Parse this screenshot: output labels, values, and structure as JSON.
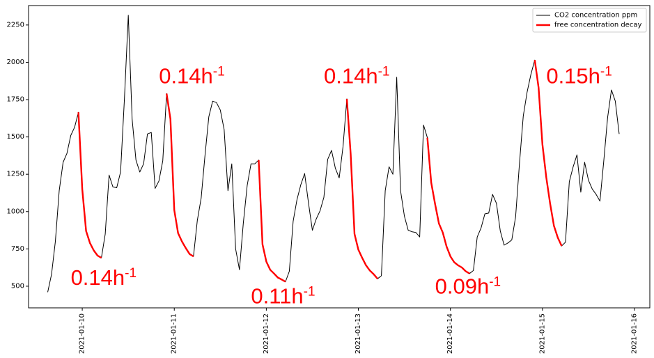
{
  "chart_data": {
    "type": "line",
    "title": "",
    "xlabel": "",
    "ylabel": "",
    "xlim": [
      "2021-01-09 10:00",
      "2021-01-16 04:00"
    ],
    "ylim": [
      355,
      2380
    ],
    "x_ticks": [
      "2021-01-10",
      "2021-01-11",
      "2021-01-12",
      "2021-01-13",
      "2021-01-14",
      "2021-01-15",
      "2021-01-16"
    ],
    "y_ticks": [
      "500",
      "750",
      "1000",
      "1250",
      "1500",
      "1750",
      "2000",
      "2250"
    ],
    "grid": false,
    "legend_position": "top-right",
    "series": [
      {
        "name": "CO2 concentration  ppm",
        "color": "#000000",
        "points": [
          [
            "2021-01-09 15:00",
            460
          ],
          [
            "2021-01-09 16:00",
            580
          ],
          [
            "2021-01-09 17:00",
            800
          ],
          [
            "2021-01-09 18:00",
            1140
          ],
          [
            "2021-01-09 19:00",
            1330
          ],
          [
            "2021-01-09 20:00",
            1390
          ],
          [
            "2021-01-09 21:00",
            1510
          ],
          [
            "2021-01-09 22:00",
            1565
          ],
          [
            "2021-01-09 23:00",
            1665
          ],
          [
            "2021-01-10 00:00",
            1150
          ],
          [
            "2021-01-10 01:00",
            870
          ],
          [
            "2021-01-10 02:00",
            790
          ],
          [
            "2021-01-10 03:00",
            740
          ],
          [
            "2021-01-10 04:00",
            705
          ],
          [
            "2021-01-10 05:00",
            690
          ],
          [
            "2021-01-10 06:00",
            850
          ],
          [
            "2021-01-10 07:00",
            1245
          ],
          [
            "2021-01-10 08:00",
            1165
          ],
          [
            "2021-01-10 09:00",
            1160
          ],
          [
            "2021-01-10 10:00",
            1265
          ],
          [
            "2021-01-10 11:00",
            1760
          ],
          [
            "2021-01-10 12:00",
            2315
          ],
          [
            "2021-01-10 13:00",
            1620
          ],
          [
            "2021-01-10 14:00",
            1345
          ],
          [
            "2021-01-10 15:00",
            1265
          ],
          [
            "2021-01-10 16:00",
            1320
          ],
          [
            "2021-01-10 17:00",
            1520
          ],
          [
            "2021-01-10 18:00",
            1530
          ],
          [
            "2021-01-10 19:00",
            1155
          ],
          [
            "2021-01-10 20:00",
            1205
          ],
          [
            "2021-01-10 21:00",
            1340
          ],
          [
            "2021-01-10 22:00",
            1790
          ],
          [
            "2021-01-10 23:00",
            1620
          ],
          [
            "2021-01-11 00:00",
            1010
          ],
          [
            "2021-01-11 01:00",
            855
          ],
          [
            "2021-01-11 02:00",
            800
          ],
          [
            "2021-01-11 03:00",
            755
          ],
          [
            "2021-01-11 04:00",
            715
          ],
          [
            "2021-01-11 05:00",
            700
          ],
          [
            "2021-01-11 06:00",
            940
          ],
          [
            "2021-01-11 07:00",
            1090
          ],
          [
            "2021-01-11 08:00",
            1375
          ],
          [
            "2021-01-11 09:00",
            1635
          ],
          [
            "2021-01-11 10:00",
            1740
          ],
          [
            "2021-01-11 11:00",
            1730
          ],
          [
            "2021-01-11 12:00",
            1680
          ],
          [
            "2021-01-11 13:00",
            1550
          ],
          [
            "2021-01-11 14:00",
            1140
          ],
          [
            "2021-01-11 15:00",
            1320
          ],
          [
            "2021-01-11 16:00",
            750
          ],
          [
            "2021-01-11 17:00",
            610
          ],
          [
            "2021-01-11 18:00",
            920
          ],
          [
            "2021-01-11 19:00",
            1175
          ],
          [
            "2021-01-11 20:00",
            1320
          ],
          [
            "2021-01-11 21:00",
            1320
          ],
          [
            "2021-01-11 22:00",
            1345
          ],
          [
            "2021-01-11 23:00",
            780
          ],
          [
            "2021-01-12 00:00",
            665
          ],
          [
            "2021-01-12 01:00",
            610
          ],
          [
            "2021-01-12 02:00",
            585
          ],
          [
            "2021-01-12 03:00",
            558
          ],
          [
            "2021-01-12 04:00",
            545
          ],
          [
            "2021-01-12 05:00",
            530
          ],
          [
            "2021-01-12 06:00",
            600
          ],
          [
            "2021-01-12 07:00",
            935
          ],
          [
            "2021-01-12 08:00",
            1080
          ],
          [
            "2021-01-12 09:00",
            1180
          ],
          [
            "2021-01-12 10:00",
            1255
          ],
          [
            "2021-01-12 11:00",
            1055
          ],
          [
            "2021-01-12 12:00",
            875
          ],
          [
            "2021-01-12 13:00",
            950
          ],
          [
            "2021-01-12 14:00",
            1005
          ],
          [
            "2021-01-12 15:00",
            1095
          ],
          [
            "2021-01-12 16:00",
            1350
          ],
          [
            "2021-01-12 17:00",
            1410
          ],
          [
            "2021-01-12 18:00",
            1290
          ],
          [
            "2021-01-12 19:00",
            1225
          ],
          [
            "2021-01-12 20:00",
            1435
          ],
          [
            "2021-01-12 21:00",
            1755
          ],
          [
            "2021-01-12 22:00",
            1385
          ],
          [
            "2021-01-12 23:00",
            850
          ],
          [
            "2021-01-13 00:00",
            745
          ],
          [
            "2021-01-13 01:00",
            690
          ],
          [
            "2021-01-13 02:00",
            640
          ],
          [
            "2021-01-13 03:00",
            605
          ],
          [
            "2021-01-13 04:00",
            580
          ],
          [
            "2021-01-13 05:00",
            550
          ],
          [
            "2021-01-13 06:00",
            570
          ],
          [
            "2021-01-13 07:00",
            1140
          ],
          [
            "2021-01-13 08:00",
            1300
          ],
          [
            "2021-01-13 09:00",
            1250
          ],
          [
            "2021-01-13 10:00",
            1900
          ],
          [
            "2021-01-13 11:00",
            1140
          ],
          [
            "2021-01-13 12:00",
            970
          ],
          [
            "2021-01-13 13:00",
            875
          ],
          [
            "2021-01-13 14:00",
            865
          ],
          [
            "2021-01-13 15:00",
            860
          ],
          [
            "2021-01-13 16:00",
            830
          ],
          [
            "2021-01-13 17:00",
            1580
          ],
          [
            "2021-01-13 18:00",
            1495
          ],
          [
            "2021-01-13 19:00",
            1195
          ],
          [
            "2021-01-13 20:00",
            1050
          ],
          [
            "2021-01-13 21:00",
            920
          ],
          [
            "2021-01-13 22:00",
            860
          ],
          [
            "2021-01-13 23:00",
            765
          ],
          [
            "2021-01-14 00:00",
            700
          ],
          [
            "2021-01-14 01:00",
            660
          ],
          [
            "2021-01-14 02:00",
            640
          ],
          [
            "2021-01-14 03:00",
            625
          ],
          [
            "2021-01-14 04:00",
            600
          ],
          [
            "2021-01-14 05:00",
            585
          ],
          [
            "2021-01-14 06:00",
            605
          ],
          [
            "2021-01-14 07:00",
            830
          ],
          [
            "2021-01-14 08:00",
            890
          ],
          [
            "2021-01-14 09:00",
            985
          ],
          [
            "2021-01-14 10:00",
            990
          ],
          [
            "2021-01-14 11:00",
            1115
          ],
          [
            "2021-01-14 12:00",
            1055
          ],
          [
            "2021-01-14 13:00",
            870
          ],
          [
            "2021-01-14 14:00",
            775
          ],
          [
            "2021-01-14 15:00",
            790
          ],
          [
            "2021-01-14 16:00",
            810
          ],
          [
            "2021-01-14 17:00",
            965
          ],
          [
            "2021-01-14 18:00",
            1320
          ],
          [
            "2021-01-14 19:00",
            1640
          ],
          [
            "2021-01-14 20:00",
            1800
          ],
          [
            "2021-01-14 21:00",
            1920
          ],
          [
            "2021-01-14 22:00",
            2015
          ],
          [
            "2021-01-14 23:00",
            1830
          ],
          [
            "2021-01-15 00:00",
            1450
          ],
          [
            "2021-01-15 01:00",
            1230
          ],
          [
            "2021-01-15 02:00",
            1055
          ],
          [
            "2021-01-15 03:00",
            905
          ],
          [
            "2021-01-15 04:00",
            825
          ],
          [
            "2021-01-15 05:00",
            770
          ],
          [
            "2021-01-15 06:00",
            795
          ],
          [
            "2021-01-15 07:00",
            1200
          ],
          [
            "2021-01-15 08:00",
            1300
          ],
          [
            "2021-01-15 09:00",
            1380
          ],
          [
            "2021-01-15 10:00",
            1130
          ],
          [
            "2021-01-15 11:00",
            1330
          ],
          [
            "2021-01-15 12:00",
            1210
          ],
          [
            "2021-01-15 13:00",
            1150
          ],
          [
            "2021-01-15 14:00",
            1115
          ],
          [
            "2021-01-15 15:00",
            1070
          ],
          [
            "2021-01-15 16:00",
            1340
          ],
          [
            "2021-01-15 17:00",
            1630
          ],
          [
            "2021-01-15 18:00",
            1815
          ],
          [
            "2021-01-15 19:00",
            1740
          ],
          [
            "2021-01-15 20:00",
            1520
          ]
        ]
      },
      {
        "name": "free concentration decay",
        "color": "#ff0000",
        "segments": [
          [
            [
              "2021-01-09 23:00",
              1665
            ],
            [
              "2021-01-10 00:00",
              1150
            ],
            [
              "2021-01-10 01:00",
              870
            ],
            [
              "2021-01-10 02:00",
              790
            ],
            [
              "2021-01-10 03:00",
              740
            ],
            [
              "2021-01-10 04:00",
              705
            ],
            [
              "2021-01-10 05:00",
              690
            ]
          ],
          [
            [
              "2021-01-10 22:00",
              1790
            ],
            [
              "2021-01-10 23:00",
              1620
            ],
            [
              "2021-01-11 00:00",
              1010
            ],
            [
              "2021-01-11 01:00",
              855
            ],
            [
              "2021-01-11 02:00",
              800
            ],
            [
              "2021-01-11 03:00",
              755
            ],
            [
              "2021-01-11 04:00",
              715
            ],
            [
              "2021-01-11 05:00",
              700
            ]
          ],
          [
            [
              "2021-01-11 22:00",
              1345
            ],
            [
              "2021-01-11 23:00",
              780
            ],
            [
              "2021-01-12 00:00",
              665
            ],
            [
              "2021-01-12 01:00",
              610
            ],
            [
              "2021-01-12 02:00",
              585
            ],
            [
              "2021-01-12 03:00",
              558
            ],
            [
              "2021-01-12 04:00",
              545
            ],
            [
              "2021-01-12 05:00",
              530
            ]
          ],
          [
            [
              "2021-01-12 21:00",
              1755
            ],
            [
              "2021-01-12 22:00",
              1385
            ],
            [
              "2021-01-12 23:00",
              850
            ],
            [
              "2021-01-13 00:00",
              745
            ],
            [
              "2021-01-13 01:00",
              690
            ],
            [
              "2021-01-13 02:00",
              640
            ],
            [
              "2021-01-13 03:00",
              605
            ],
            [
              "2021-01-13 04:00",
              580
            ],
            [
              "2021-01-13 05:00",
              550
            ]
          ],
          [
            [
              "2021-01-13 18:00",
              1495
            ],
            [
              "2021-01-13 19:00",
              1195
            ],
            [
              "2021-01-13 20:00",
              1050
            ],
            [
              "2021-01-13 21:00",
              920
            ],
            [
              "2021-01-13 22:00",
              860
            ],
            [
              "2021-01-13 23:00",
              765
            ],
            [
              "2021-01-14 00:00",
              700
            ],
            [
              "2021-01-14 01:00",
              660
            ],
            [
              "2021-01-14 02:00",
              640
            ],
            [
              "2021-01-14 03:00",
              625
            ],
            [
              "2021-01-14 04:00",
              600
            ],
            [
              "2021-01-14 05:00",
              585
            ]
          ],
          [
            [
              "2021-01-14 22:00",
              2015
            ],
            [
              "2021-01-14 23:00",
              1830
            ],
            [
              "2021-01-15 00:00",
              1450
            ],
            [
              "2021-01-15 01:00",
              1230
            ],
            [
              "2021-01-15 02:00",
              1055
            ],
            [
              "2021-01-15 03:00",
              905
            ],
            [
              "2021-01-15 04:00",
              825
            ],
            [
              "2021-01-15 05:00",
              770
            ]
          ]
        ]
      }
    ],
    "annotations": [
      {
        "value": "0.14",
        "unit": "h",
        "exp": "-1",
        "at": [
          "2021-01-09 21:00",
          510
        ]
      },
      {
        "value": "0.14",
        "unit": "h",
        "exp": "-1",
        "at": [
          "2021-01-10 20:00",
          1860
        ]
      },
      {
        "value": "0.11",
        "unit": "h",
        "exp": "-1",
        "at": [
          "2021-01-11 20:00",
          385
        ]
      },
      {
        "value": "0.14",
        "unit": "h",
        "exp": "-1",
        "at": [
          "2021-01-12 15:00",
          1860
        ]
      },
      {
        "value": "0.09",
        "unit": "h",
        "exp": "-1",
        "at": [
          "2021-01-13 20:00",
          450
        ]
      },
      {
        "value": "0.15",
        "unit": "h",
        "exp": "-1",
        "at": [
          "2021-01-15 01:00",
          1860
        ]
      }
    ]
  }
}
